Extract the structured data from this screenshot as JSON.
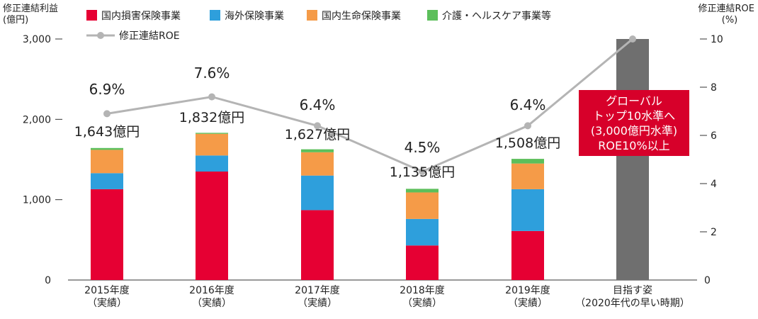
{
  "chart_data": {
    "type": "bar",
    "stacked": true,
    "categories": [
      [
        "2015年度",
        "（実績）"
      ],
      [
        "2016年度",
        "（実績）"
      ],
      [
        "2017年度",
        "（実績）"
      ],
      [
        "2018年度",
        "（実績）"
      ],
      [
        "2019年度",
        "（実績）"
      ],
      [
        "目指す姿",
        "（2020年代の早い時期）"
      ]
    ],
    "y_left": {
      "label": [
        "修正連結利益",
        "(億円)"
      ],
      "ylim": [
        0,
        3000
      ],
      "ticks": [
        0,
        1000,
        2000,
        3000
      ],
      "tick_labels": [
        "0",
        "1,000",
        "2,000",
        "3,000"
      ]
    },
    "y_right": {
      "label": [
        "修正連結ROE",
        "(%)"
      ],
      "ylim": [
        0,
        10
      ],
      "ticks": [
        0,
        2,
        4,
        6,
        8,
        10
      ],
      "tick_labels": [
        "0",
        "2",
        "4",
        "6",
        "8",
        "10"
      ]
    },
    "series": [
      {
        "name": "国内損害保険事業",
        "color": "#e60033",
        "values": [
          1130,
          1350,
          870,
          430,
          610,
          null
        ]
      },
      {
        "name": "海外保険事業",
        "color": "#2e9fdc",
        "values": [
          200,
          200,
          430,
          330,
          520,
          null
        ]
      },
      {
        "name": "国内生命保険事業",
        "color": "#f59b48",
        "values": [
          290,
          270,
          290,
          330,
          320,
          null
        ]
      },
      {
        "name": "介護・ヘルスケア事業等",
        "color": "#5cbf5b",
        "values": [
          23,
          12,
          37,
          45,
          58,
          null
        ]
      }
    ],
    "target_bar": {
      "value": 3000,
      "color": "#6f6f6f"
    },
    "totals": [
      "1,643億円",
      "1,832億円",
      "1,627億円",
      "1,135億円",
      "1,508億円",
      null
    ],
    "roe_line": {
      "name": "修正連結ROE",
      "color": "#b4b4b4",
      "values": [
        6.9,
        7.6,
        6.4,
        4.5,
        6.4,
        10.0
      ],
      "labels": [
        "6.9%",
        "7.6%",
        "6.4%",
        "4.5%",
        "6.4%",
        null
      ]
    },
    "annotation": {
      "lines": [
        "グローバル",
        "トップ10水準へ",
        "(3,000億円水準)",
        "ROE10%以上"
      ],
      "bg": "#d7002a",
      "text_color": "#ffffff"
    },
    "legend": "top"
  }
}
